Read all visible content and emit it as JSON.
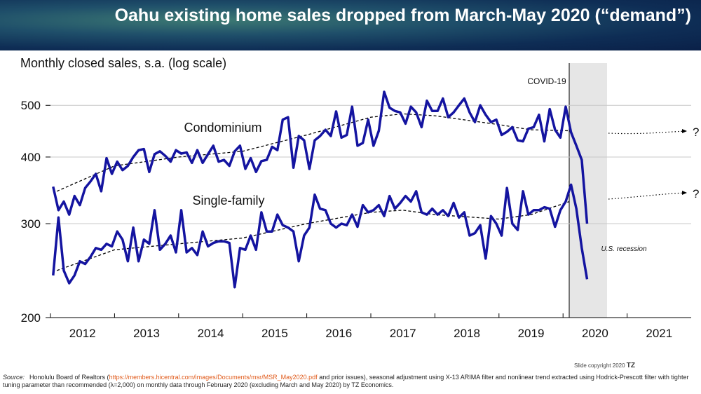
{
  "chart_data": {
    "type": "line",
    "title": "Oahu existing home sales dropped from March-May 2020 (“demand”)",
    "ylabel": "Monthly closed sales, s.a. (log scale)",
    "log_scale": true,
    "ylim": [
      200,
      600
    ],
    "yticks": [
      200,
      300,
      400,
      500
    ],
    "xlim": [
      2012,
      2022
    ],
    "xticks": [
      2012,
      2013,
      2014,
      2015,
      2016,
      2017,
      2018,
      2019,
      2020,
      2021
    ],
    "grid": true,
    "x": [
      2012.042,
      2012.125,
      2012.208,
      2012.292,
      2012.375,
      2012.458,
      2012.542,
      2012.625,
      2012.708,
      2012.792,
      2012.875,
      2012.958,
      2013.042,
      2013.125,
      2013.208,
      2013.292,
      2013.375,
      2013.458,
      2013.542,
      2013.625,
      2013.708,
      2013.792,
      2013.875,
      2013.958,
      2014.042,
      2014.125,
      2014.208,
      2014.292,
      2014.375,
      2014.458,
      2014.542,
      2014.625,
      2014.708,
      2014.792,
      2014.875,
      2014.958,
      2015.042,
      2015.125,
      2015.208,
      2015.292,
      2015.375,
      2015.458,
      2015.542,
      2015.625,
      2015.708,
      2015.792,
      2015.875,
      2015.958,
      2016.042,
      2016.125,
      2016.208,
      2016.292,
      2016.375,
      2016.458,
      2016.542,
      2016.625,
      2016.708,
      2016.792,
      2016.875,
      2016.958,
      2017.042,
      2017.125,
      2017.208,
      2017.292,
      2017.375,
      2017.458,
      2017.542,
      2017.625,
      2017.708,
      2017.792,
      2017.875,
      2017.958,
      2018.042,
      2018.125,
      2018.208,
      2018.292,
      2018.375,
      2018.458,
      2018.542,
      2018.625,
      2018.708,
      2018.792,
      2018.875,
      2018.958,
      2019.042,
      2019.125,
      2019.208,
      2019.292,
      2019.375,
      2019.458,
      2019.542,
      2019.625,
      2019.708,
      2019.792,
      2019.875,
      2019.958,
      2020.042,
      2020.125,
      2020.208,
      2020.292,
      2020.375
    ],
    "series": [
      {
        "name": "Condominium",
        "color": "#1414a0",
        "values": [
          352,
          318,
          330,
          312,
          338,
          325,
          350,
          360,
          372,
          345,
          398,
          372,
          392,
          378,
          385,
          400,
          412,
          414,
          375,
          405,
          410,
          402,
          392,
          412,
          406,
          408,
          390,
          412,
          390,
          405,
          420,
          392,
          395,
          385,
          410,
          420,
          380,
          398,
          375,
          393,
          395,
          418,
          412,
          470,
          475,
          382,
          438,
          430,
          380,
          430,
          438,
          450,
          438,
          487,
          435,
          440,
          497,
          420,
          425,
          470,
          420,
          448,
          530,
          495,
          488,
          485,
          462,
          497,
          485,
          455,
          510,
          488,
          488,
          515,
          475,
          485,
          500,
          515,
          485,
          465,
          500,
          480,
          465,
          470,
          440,
          446,
          455,
          430,
          428,
          452,
          455,
          480,
          428,
          492,
          450,
          435,
          497,
          445,
          420,
          395,
          300
        ]
      },
      {
        "name": "Single-family",
        "color": "#1414a0",
        "values": [
          240,
          308,
          245,
          232,
          240,
          255,
          252,
          260,
          270,
          268,
          275,
          272,
          290,
          280,
          255,
          295,
          255,
          280,
          275,
          318,
          268,
          275,
          285,
          265,
          318,
          265,
          270,
          262,
          290,
          272,
          276,
          278,
          278,
          276,
          228,
          270,
          268,
          285,
          268,
          315,
          290,
          290,
          312,
          298,
          295,
          290,
          255,
          285,
          295,
          340,
          320,
          318,
          300,
          295,
          300,
          298,
          312,
          296,
          325,
          315,
          318,
          325,
          310,
          338,
          320,
          328,
          338,
          330,
          345,
          315,
          312,
          320,
          312,
          318,
          310,
          328,
          308,
          315,
          285,
          288,
          298,
          258,
          310,
          300,
          285,
          350,
          300,
          292,
          345,
          312,
          318,
          318,
          322,
          320,
          296,
          318,
          330,
          355,
          320,
          270,
          236
        ]
      }
    ],
    "trends": [
      {
        "color": "#000000",
        "x": [
          2012.1,
          2013,
          2014,
          2015,
          2016,
          2017,
          2017.5,
          2018,
          2019,
          2019.5,
          2020.1
        ],
        "values": [
          345,
          385,
          400,
          410,
          440,
          475,
          482,
          478,
          460,
          450,
          448
        ]
      },
      {
        "color": "#000000",
        "x": [
          2012.1,
          2013,
          2014,
          2015,
          2016,
          2017,
          2017.5,
          2018,
          2019,
          2019.5,
          2020.1
        ],
        "values": [
          245,
          268,
          275,
          282,
          300,
          315,
          318,
          312,
          306,
          312,
          330
        ]
      }
    ],
    "annotations": {
      "covid": "COVID-19",
      "recession": "U.S. recession",
      "condo_question": "?",
      "sf_question": "?"
    },
    "source": {
      "label": "Source:",
      "prefix": "Honolulu Board of Realtors (",
      "url": "https://members.hicentral.com/images/Documents/msr/MSR_May2020.pdf",
      "rest": " and prior issues), seasonal adjustment using X-13 ARIMA filter and nonlinear trend extracted using Hodrick-Prescott filter with tighter tuning parameter than recommended (λ=2,000) on monthly data through February 2020 (excluding March and May 2020) by TZ Economics."
    },
    "copyright": {
      "text": "Slide copyright 2020",
      "brand": "TZ"
    }
  }
}
